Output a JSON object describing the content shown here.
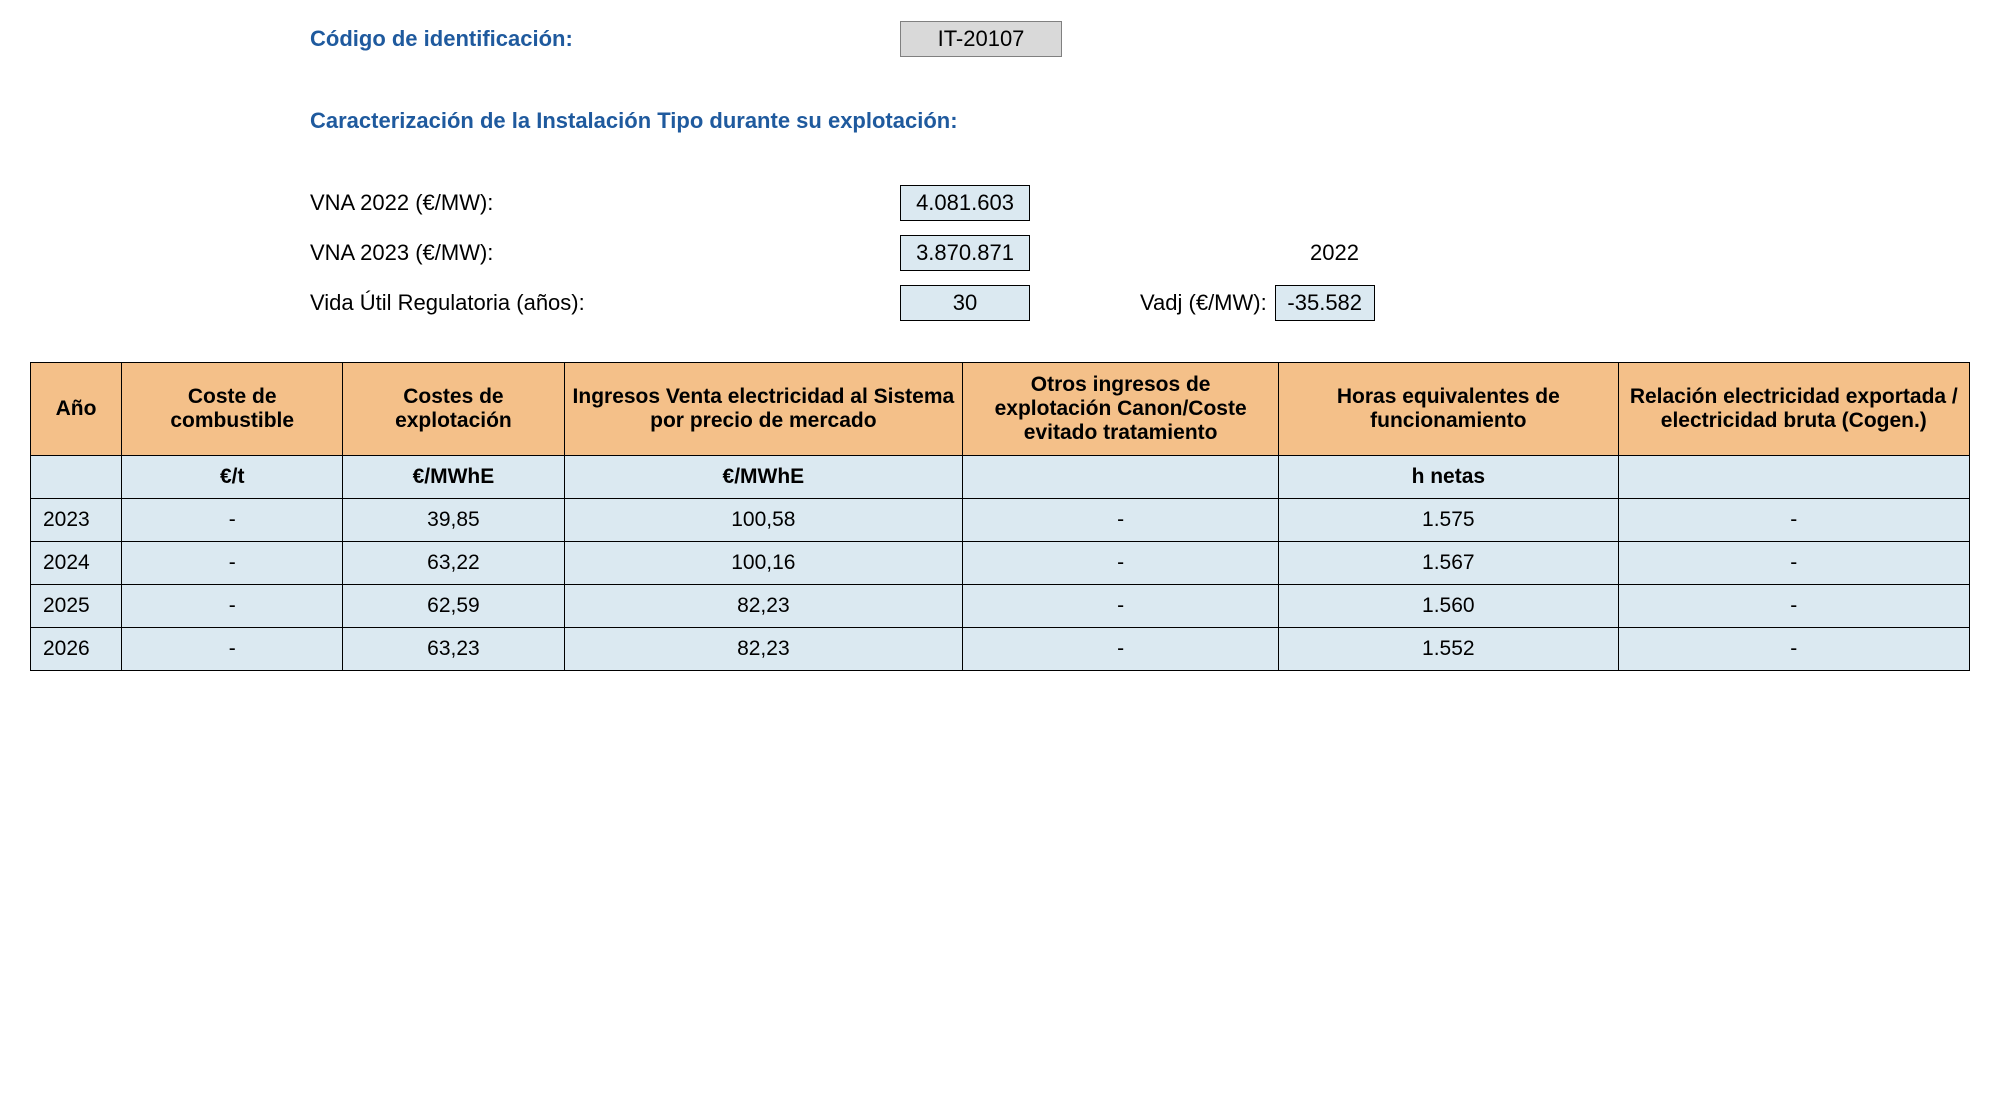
{
  "header": {
    "codigo_label": "Código de identificación:",
    "codigo_value": "IT-20107",
    "caracterizacion_label": "Caracterización de la Instalación Tipo durante su explotación:",
    "vna2022_label": "VNA 2022 (€/MW):",
    "vna2022_value": "4.081.603",
    "vna2023_label": "VNA 2023 (€/MW):",
    "vna2023_value": "3.870.871",
    "year_label": "2022",
    "vida_util_label": "Vida Útil Regulatoria (años):",
    "vida_util_value": "30",
    "vadj_label": "Vadj (€/MW):",
    "vadj_value": "-35.582"
  },
  "table": {
    "columns": {
      "ano": "Año",
      "coste_combustible": "Coste de combustible",
      "costes_explotacion": "Costes de explotación",
      "ingresos_venta": "Ingresos Venta electricidad al Sistema por precio de mercado",
      "otros_ingresos": "Otros ingresos de explotación Canon/Coste evitado tratamiento",
      "horas_equiv": "Horas equivalentes de funcionamiento",
      "relacion_elec": "Relación electricidad exportada / electricidad bruta (Cogen.)"
    },
    "units": {
      "ano": "",
      "coste_combustible": "€/t",
      "costes_explotacion": "€/MWhE",
      "ingresos_venta": "€/MWhE",
      "otros_ingresos": "",
      "horas_equiv": "h netas",
      "relacion_elec": ""
    },
    "rows": [
      {
        "ano": "2023",
        "coste_combustible": "-",
        "costes_explotacion": "39,85",
        "ingresos_venta": "100,58",
        "otros_ingresos": "-",
        "horas_equiv": "1.575",
        "relacion_elec": "-"
      },
      {
        "ano": "2024",
        "coste_combustible": "-",
        "costes_explotacion": "63,22",
        "ingresos_venta": "100,16",
        "otros_ingresos": "-",
        "horas_equiv": "1.567",
        "relacion_elec": "-"
      },
      {
        "ano": "2025",
        "coste_combustible": "-",
        "costes_explotacion": "62,59",
        "ingresos_venta": "82,23",
        "otros_ingresos": "-",
        "horas_equiv": "1.560",
        "relacion_elec": "-"
      },
      {
        "ano": "2026",
        "coste_combustible": "-",
        "costes_explotacion": "63,23",
        "ingresos_venta": "82,23",
        "otros_ingresos": "-",
        "horas_equiv": "1.552",
        "relacion_elec": "-"
      }
    ],
    "header_bg_color": "#f4c089",
    "cell_bg_color": "#dbe9f1",
    "border_color": "#000000"
  }
}
